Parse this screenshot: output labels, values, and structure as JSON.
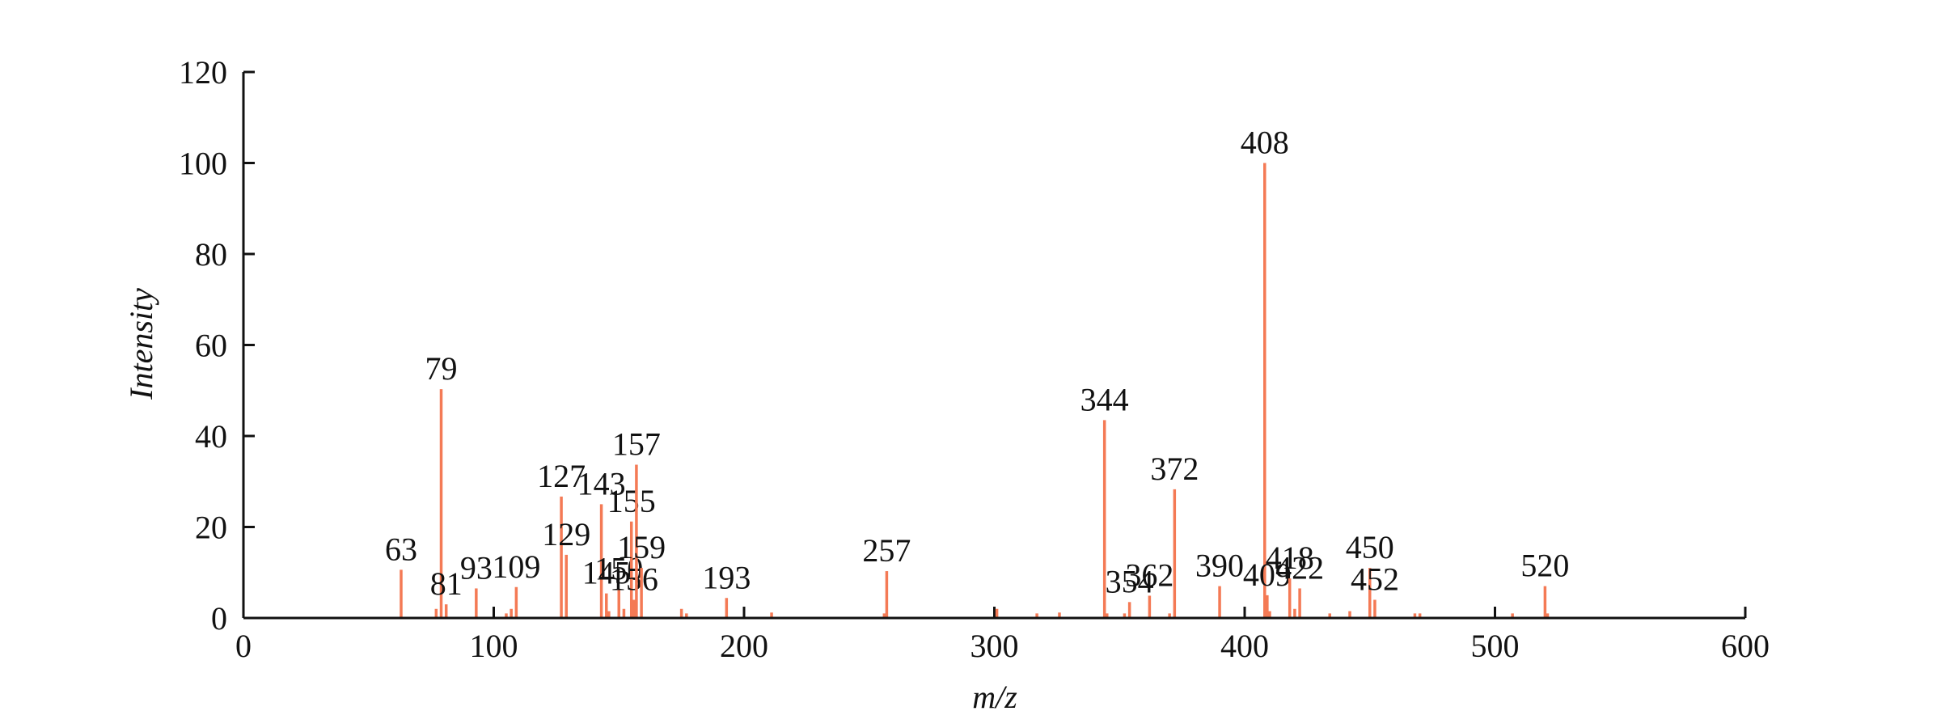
{
  "chart_data": {
    "type": "stem",
    "x_label": "m/z",
    "y_label": "Intensity",
    "color": "#f47a55",
    "xlim": [
      0,
      600
    ],
    "xticks": [
      0,
      100,
      200,
      300,
      400,
      500,
      600
    ],
    "ylim": [
      0,
      120
    ],
    "yticks": [
      0,
      20,
      40,
      60,
      80,
      100,
      120
    ],
    "x": [
      63,
      79,
      81,
      93,
      109,
      127,
      129,
      143,
      145,
      150,
      155,
      156,
      157,
      159,
      193,
      257,
      344,
      354,
      362,
      372,
      390,
      408,
      409,
      418,
      422,
      450,
      452,
      520
    ],
    "values": [
      10.6,
      50.3,
      3,
      6.5,
      6.8,
      26.7,
      13.9,
      25,
      5.4,
      6.3,
      21.2,
      4,
      33.7,
      11,
      4.4,
      10.3,
      43.5,
      3.5,
      4.9,
      28.3,
      7,
      100,
      5,
      8.7,
      6.5,
      11,
      4,
      7
    ],
    "minor_x": [
      77,
      105,
      107,
      146,
      152,
      175,
      177,
      211,
      256,
      301,
      317,
      326,
      345,
      352,
      370,
      410,
      420,
      434,
      442,
      468,
      470,
      507,
      521
    ],
    "minor_values": [
      2,
      1,
      2,
      1.5,
      2,
      2,
      1,
      1.2,
      1,
      2,
      1,
      1.2,
      1,
      1,
      1,
      1.5,
      2,
      1,
      1.5,
      1,
      1,
      1,
      1
    ]
  }
}
